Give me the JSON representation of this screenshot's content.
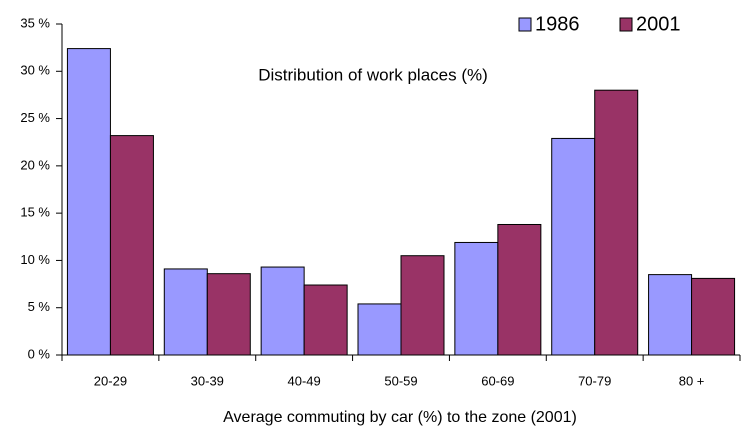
{
  "chart_data": {
    "type": "bar",
    "annotation": "Distribution of work places (%)",
    "x_label": "Average commuting by car (%) to the zone (2001)",
    "categories": [
      "20-29",
      "30-39",
      "40-49",
      "50-59",
      "60-69",
      "70-79",
      "80 +"
    ],
    "series": [
      {
        "name": "1986",
        "color": "#9999ff",
        "values": [
          32.4,
          9.1,
          9.3,
          5.4,
          11.9,
          22.9,
          8.5
        ]
      },
      {
        "name": "2001",
        "color": "#993366",
        "values": [
          23.2,
          8.6,
          7.4,
          10.5,
          13.8,
          28.0,
          8.1
        ]
      }
    ],
    "ylim": [
      0,
      35
    ],
    "yticks": [
      {
        "value": 0,
        "label": "0 %"
      },
      {
        "value": 5,
        "label": "5 %"
      },
      {
        "value": 10,
        "label": "10 %"
      },
      {
        "value": 15,
        "label": "15 %"
      },
      {
        "value": 20,
        "label": "20 %"
      },
      {
        "value": 25,
        "label": "25 %"
      },
      {
        "value": 30,
        "label": "30 %"
      },
      {
        "value": 35,
        "label": "35 %"
      }
    ],
    "grid": false,
    "legend": "top-right"
  }
}
